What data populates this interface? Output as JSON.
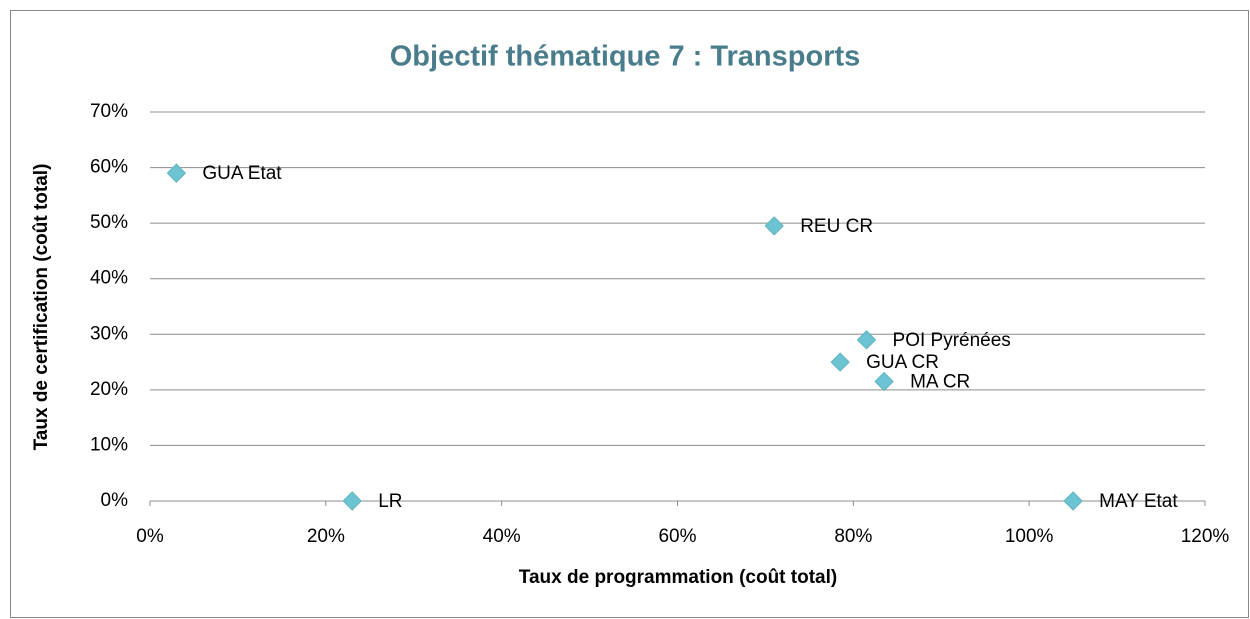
{
  "chart_data": {
    "type": "scatter",
    "title": "Objectif thématique 7 : Transports",
    "xlabel": "Taux de programmation (coût total)",
    "ylabel": "Taux de certification (coût total)",
    "x": [
      3,
      71,
      81.5,
      78.5,
      83.5,
      23,
      105
    ],
    "values": [
      59,
      49.5,
      29,
      25,
      21.5,
      0,
      0
    ],
    "point_labels": [
      "GUA Etat",
      "REU CR",
      "POI Pyrénées",
      "GUA CR",
      "MA CR",
      "LR",
      "MAY Etat"
    ],
    "color": "#6cc3d2",
    "xlim": [
      0,
      120
    ],
    "ylim": [
      0,
      70
    ],
    "xticks": [
      {
        "value": 0,
        "label": "0%"
      },
      {
        "value": 20,
        "label": "20%"
      },
      {
        "value": 40,
        "label": "40%"
      },
      {
        "value": 60,
        "label": "60%"
      },
      {
        "value": 80,
        "label": "80%"
      },
      {
        "value": 100,
        "label": "100%"
      },
      {
        "value": 120,
        "label": "120%"
      }
    ],
    "yticks": [
      {
        "value": 0,
        "label": "0%"
      },
      {
        "value": 10,
        "label": "10%"
      },
      {
        "value": 20,
        "label": "20%"
      },
      {
        "value": 30,
        "label": "30%"
      },
      {
        "value": 40,
        "label": "40%"
      },
      {
        "value": 50,
        "label": "50%"
      },
      {
        "value": 60,
        "label": "60%"
      },
      {
        "value": 70,
        "label": "70%"
      }
    ],
    "grid": true
  }
}
